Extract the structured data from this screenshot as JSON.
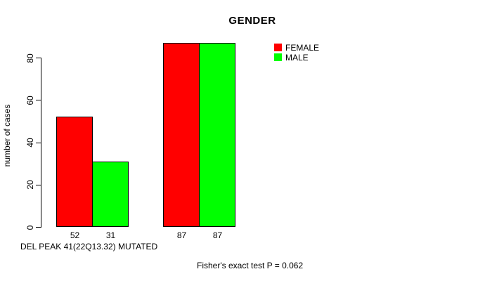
{
  "chart_data": {
    "type": "bar",
    "title": "GENDER",
    "ylabel": "number of cases",
    "xlabel": "DEL PEAK 41(22Q13.32) MUTATED",
    "annotation": "Fisher's exact test P = 0.062",
    "yticks": [
      0,
      20,
      40,
      60,
      80
    ],
    "ylim": [
      0,
      87
    ],
    "grid": false,
    "legend_position": "top-right",
    "show_values_under_bars": true,
    "categories": [
      "",
      ""
    ],
    "series": [
      {
        "name": "FEMALE",
        "color": "#ff0000",
        "values": [
          52,
          87
        ]
      },
      {
        "name": "MALE",
        "color": "#00ff00",
        "values": [
          31,
          87
        ]
      }
    ],
    "colors": {
      "background": "#ffffff",
      "axis": "#000000",
      "bar_border": "#000000"
    }
  }
}
